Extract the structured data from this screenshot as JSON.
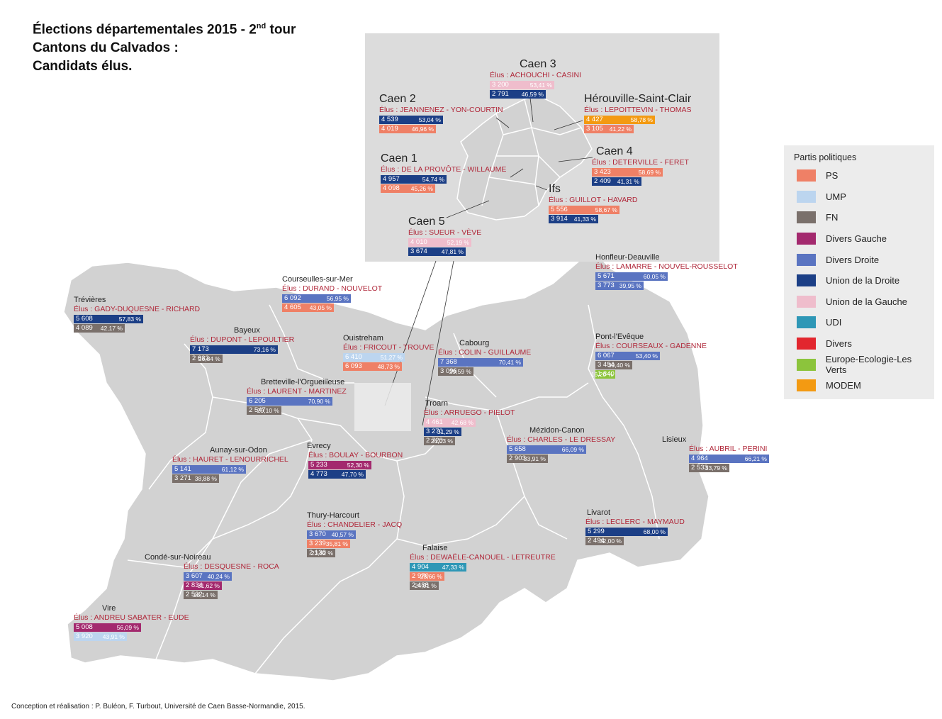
{
  "title": {
    "line1_prefix": "Élections départementales 2015 - 2",
    "line1_sup": "nd",
    "line1_suffix": " tour",
    "line2": "Cantons du Calvados :",
    "line3": "Candidats élus."
  },
  "legend": {
    "title": "Partis politiques",
    "items": [
      {
        "label": "PS",
        "color": "#ef8066"
      },
      {
        "label": "UMP",
        "color": "#bcd5ef"
      },
      {
        "label": "FN",
        "color": "#7a706b"
      },
      {
        "label": "Divers Gauche",
        "color": "#a3296e"
      },
      {
        "label": "Divers Droite",
        "color": "#5a74c1"
      },
      {
        "label": "Union de la Droite",
        "color": "#1c3f86"
      },
      {
        "label": "Union de la Gauche",
        "color": "#efbdcc"
      },
      {
        "label": "UDI",
        "color": "#2e97b6"
      },
      {
        "label": "Divers",
        "color": "#e2262e"
      },
      {
        "label": "Europe-Ecologie-Les Verts",
        "color": "#8cc43c"
      },
      {
        "label": "MODEM",
        "color": "#f39a12"
      }
    ]
  },
  "credit": "Conception et réalisation : P. Buléon, F. Turbout, Université de Caen Basse-Normandie, 2015.",
  "cantons": [
    {
      "name": "Caen 3",
      "big": true,
      "elus": "Élus : ACHOUCHI - CASINI",
      "rows": [
        {
          "votes": "3 200",
          "pct": "53,41 %",
          "party": "Union de la Gauche"
        },
        {
          "votes": "2 791",
          "pct": "46,59 %",
          "party": "Union de la Droite"
        }
      ]
    },
    {
      "name": "Caen 2",
      "big": true,
      "elus": "Élus : JEANNENEZ - YON-COURTIN",
      "rows": [
        {
          "votes": "4 539",
          "pct": "53,04 %",
          "party": "Union de la Droite"
        },
        {
          "votes": "4 019",
          "pct": "46,96 %",
          "party": "PS"
        }
      ]
    },
    {
      "name": "Hérouville-Saint-Clair",
      "big": true,
      "elus": "Élus : LEPOITTEVIN - THOMAS",
      "rows": [
        {
          "votes": "4 427",
          "pct": "58,78 %",
          "party": "MODEM"
        },
        {
          "votes": "3 105",
          "pct": "41,22 %",
          "party": "PS"
        }
      ]
    },
    {
      "name": "Caen 4",
      "big": true,
      "elus": "Élus : DETERVILLE - FERET",
      "rows": [
        {
          "votes": "3 423",
          "pct": "58,69 %",
          "party": "PS"
        },
        {
          "votes": "2 409",
          "pct": "41,31 %",
          "party": "Union de la Droite"
        }
      ]
    },
    {
      "name": "Caen 1",
      "big": true,
      "elus": "Élus : DE LA PROVÔTE - WILLAUME",
      "rows": [
        {
          "votes": "4 957",
          "pct": "54,74 %",
          "party": "Union de la Droite"
        },
        {
          "votes": "4 098",
          "pct": "45,26 %",
          "party": "PS"
        }
      ]
    },
    {
      "name": "Ifs",
      "big": true,
      "elus": "Élus : GUILLOT - HAVARD",
      "rows": [
        {
          "votes": "5 556",
          "pct": "58,67 %",
          "party": "PS"
        },
        {
          "votes": "3 914",
          "pct": "41,33 %",
          "party": "Union de la Droite"
        }
      ]
    },
    {
      "name": "Caen 5",
      "big": true,
      "elus": "Élus : SUEUR - VÈVE",
      "rows": [
        {
          "votes": "4 010",
          "pct": "52,19 %",
          "party": "Union de la Gauche"
        },
        {
          "votes": "3 674",
          "pct": "47,81 %",
          "party": "Union de la Droite"
        }
      ]
    },
    {
      "name": "Honfleur-Deauville",
      "big": false,
      "elus": "Élus : LAMARRE - NOUVEL-ROUSSELOT",
      "rows": [
        {
          "votes": "5 671",
          "pct": "60,05 %",
          "party": "Divers Droite"
        },
        {
          "votes": "3 773",
          "pct": "39,95 %",
          "party": "Divers Droite"
        }
      ]
    },
    {
      "name": "Courseulles-sur-Mer",
      "big": false,
      "elus": "Élus : DURAND - NOUVELOT",
      "rows": [
        {
          "votes": "6 092",
          "pct": "56,95 %",
          "party": "Divers Droite"
        },
        {
          "votes": "4 605",
          "pct": "43,05 %",
          "party": "PS"
        }
      ]
    },
    {
      "name": "Trévières",
      "big": false,
      "elus": "Élus : GADY-DUQUESNE - RICHARD",
      "rows": [
        {
          "votes": "5 608",
          "pct": "57,83 %",
          "party": "Union de la Droite"
        },
        {
          "votes": "4 089",
          "pct": "42,17 %",
          "party": "FN"
        }
      ]
    },
    {
      "name": "Bayeux",
      "big": false,
      "elus": "Élus : DUPONT - LEPOULTIER",
      "rows": [
        {
          "votes": "7 173",
          "pct": "73,16 %",
          "party": "Union de la Droite"
        },
        {
          "votes": "2 632",
          "pct": "26,84 %",
          "party": "FN"
        }
      ]
    },
    {
      "name": "Ouistreham",
      "big": false,
      "elus": "Élus : FRICOUT - TROUVE",
      "rows": [
        {
          "votes": "6 410",
          "pct": "51,27 %",
          "party": "UMP"
        },
        {
          "votes": "6 093",
          "pct": "48,73 %",
          "party": "PS"
        }
      ]
    },
    {
      "name": "Cabourg",
      "big": false,
      "elus": "Élus : COLIN - GUILLAUME",
      "rows": [
        {
          "votes": "7 368",
          "pct": "70,41 %",
          "party": "Divers Droite"
        },
        {
          "votes": "3 096",
          "pct": "29,59 %",
          "party": "FN"
        }
      ]
    },
    {
      "name": "Pont-l'Evêque",
      "big": false,
      "elus": "Élus : COURSEAUX - GADENNE",
      "rows": [
        {
          "votes": "6 067",
          "pct": "53,40 %",
          "party": "Divers Droite"
        },
        {
          "votes": "3 454",
          "pct": "30,40 %",
          "party": "FN"
        },
        {
          "votes": "1 840",
          "pct": "16,20 %",
          "party": "Europe-Ecologie-Les Verts"
        }
      ]
    },
    {
      "name": "Bretteville-l'Orgueilleuse",
      "big": false,
      "elus": "Élus : LAURENT - MARTINEZ",
      "rows": [
        {
          "votes": "6 205",
          "pct": "70,90 %",
          "party": "Divers Droite"
        },
        {
          "votes": "2 547",
          "pct": "29,10 %",
          "party": "FN"
        }
      ]
    },
    {
      "name": "Troarn",
      "big": false,
      "elus": "Élus : ARRUEGO - PIELOT",
      "rows": [
        {
          "votes": "4 461",
          "pct": "42,68 %",
          "party": "Union de la Gauche"
        },
        {
          "votes": "3 270",
          "pct": "31,29 %",
          "party": "Union de la Droite"
        },
        {
          "votes": "2 720",
          "pct": "26,03 %",
          "party": "FN"
        }
      ]
    },
    {
      "name": "Mézidon-Canon",
      "big": false,
      "elus": "Élus : CHARLES - LE DRESSAY",
      "rows": [
        {
          "votes": "5 658",
          "pct": "66,09 %",
          "party": "Divers Droite"
        },
        {
          "votes": "2 903",
          "pct": "33,91 %",
          "party": "FN"
        }
      ]
    },
    {
      "name": "Lisieux",
      "big": false,
      "elus": "Élus : AUBRIL - PERINI",
      "rows": [
        {
          "votes": "4 964",
          "pct": "66,21 %",
          "party": "Divers Droite"
        },
        {
          "votes": "2 533",
          "pct": "33,79 %",
          "party": "FN"
        }
      ]
    },
    {
      "name": "Aunay-sur-Odon",
      "big": false,
      "elus": "Élus : HAURET - LENOURRICHEL",
      "rows": [
        {
          "votes": "5 141",
          "pct": "61,12 %",
          "party": "Divers Droite"
        },
        {
          "votes": "3 271",
          "pct": "38,88 %",
          "party": "FN"
        }
      ]
    },
    {
      "name": "Evrecy",
      "big": false,
      "elus": "Élus : BOULAY - BOURBON",
      "rows": [
        {
          "votes": "5 233",
          "pct": "52,30 %",
          "party": "Divers Gauche"
        },
        {
          "votes": "4 773",
          "pct": "47,70 %",
          "party": "Union de la Droite"
        }
      ]
    },
    {
      "name": "Thury-Harcourt",
      "big": false,
      "elus": "Élus : CHANDELIER - JACQ",
      "rows": [
        {
          "votes": "3 670",
          "pct": "40,57 %",
          "party": "Divers Droite"
        },
        {
          "votes": "3 239",
          "pct": "35,81 %",
          "party": "PS"
        },
        {
          "votes": "2 136",
          "pct": "23,62 %",
          "party": "FN"
        }
      ]
    },
    {
      "name": "Livarot",
      "big": false,
      "elus": "Élus : LECLERC - MAYMAUD",
      "rows": [
        {
          "votes": "5 299",
          "pct": "68,00 %",
          "party": "Union de la Droite"
        },
        {
          "votes": "2 494",
          "pct": "32,00 %",
          "party": "FN"
        }
      ]
    },
    {
      "name": "Falaise",
      "big": false,
      "elus": "Élus : DEWAËLE-CANOUEL - LETREUTRE",
      "rows": [
        {
          "votes": "4 904",
          "pct": "47,33 %",
          "party": "UDI"
        },
        {
          "votes": "2 970",
          "pct": "28,66 %",
          "party": "PS"
        },
        {
          "votes": "2 488",
          "pct": "24,01 %",
          "party": "FN"
        }
      ]
    },
    {
      "name": "Condé-sur-Noireau",
      "big": false,
      "elus": "Élus : DESQUESNE - ROCA",
      "rows": [
        {
          "votes": "3 607",
          "pct": "40,24 %",
          "party": "Divers Droite"
        },
        {
          "votes": "2 834",
          "pct": "31,62 %",
          "party": "Divers Gauche"
        },
        {
          "votes": "2 522",
          "pct": "28,14 %",
          "party": "FN"
        }
      ]
    },
    {
      "name": "Vire",
      "big": false,
      "elus": "Élus : ANDREU SABATER - EUDE",
      "rows": [
        {
          "votes": "5 008",
          "pct": "56,09 %",
          "party": "Divers Gauche"
        },
        {
          "votes": "3 920",
          "pct": "43,91 %",
          "party": "UMP"
        }
      ]
    }
  ]
}
